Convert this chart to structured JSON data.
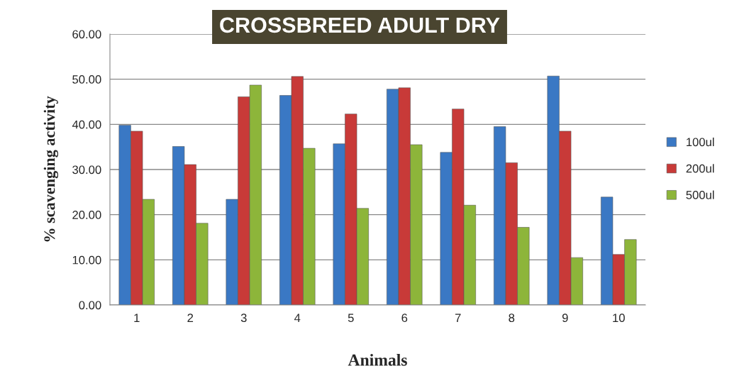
{
  "chart_data": {
    "type": "bar",
    "title": "CROSSBREED ADULT DRY",
    "xlabel": "Animals",
    "ylabel": "% scavenging activity",
    "categories": [
      "1",
      "2",
      "3",
      "4",
      "5",
      "6",
      "7",
      "8",
      "9",
      "10"
    ],
    "series": [
      {
        "name": "100ul",
        "color": "#3a78c4",
        "values": [
          39.8,
          35.1,
          23.4,
          46.4,
          35.7,
          47.8,
          33.8,
          39.5,
          50.7,
          23.9
        ]
      },
      {
        "name": "200ul",
        "color": "#c83a38",
        "values": [
          38.5,
          31.1,
          46.1,
          50.6,
          42.3,
          48.1,
          43.4,
          31.5,
          38.5,
          11.2
        ]
      },
      {
        "name": "500ul",
        "color": "#8db53a",
        "values": [
          23.4,
          18.1,
          48.7,
          34.7,
          21.4,
          35.5,
          22.1,
          17.2,
          10.5,
          14.5
        ]
      }
    ],
    "ylim": [
      0,
      60
    ],
    "yticks": [
      {
        "value": 0,
        "label": "0.00"
      },
      {
        "value": 10,
        "label": "10.00"
      },
      {
        "value": 20,
        "label": "20.00"
      },
      {
        "value": 30,
        "label": "30.00"
      },
      {
        "value": 40,
        "label": "40.00"
      },
      {
        "value": 50,
        "label": "50.00"
      },
      {
        "value": 60,
        "label": "60.00"
      }
    ],
    "grid": "y",
    "legend": "right"
  }
}
